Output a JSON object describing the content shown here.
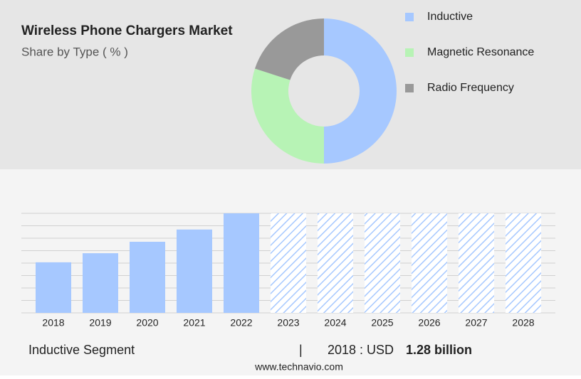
{
  "chart_data": [
    {
      "type": "pie",
      "title": "Wireless Phone Chargers Market",
      "subtitle": "Share by Type ( % )",
      "categories": [
        "Inductive",
        "Magnetic Resonance",
        "Radio Frequency"
      ],
      "values": [
        50,
        30,
        20
      ],
      "colors": [
        "#a6c8ff",
        "#b7f3b5",
        "#999999"
      ]
    },
    {
      "type": "bar",
      "title": "Inductive Segment",
      "categories": [
        "2018",
        "2019",
        "2020",
        "2021",
        "2022",
        "2023",
        "2024",
        "2025",
        "2026",
        "2027",
        "2028"
      ],
      "values": [
        1.28,
        1.51,
        1.8,
        2.11,
        2.52,
        null,
        null,
        null,
        null,
        null,
        null
      ],
      "value_labels": [
        "1.28 billion",
        null,
        null,
        null,
        null,
        null,
        null,
        null,
        null,
        null,
        null
      ],
      "value_prefix": "2018 : USD",
      "ylim": [
        0,
        2.52
      ],
      "color": "#a6c8ff"
    }
  ],
  "footer": {
    "source": "www.technavio.com"
  }
}
